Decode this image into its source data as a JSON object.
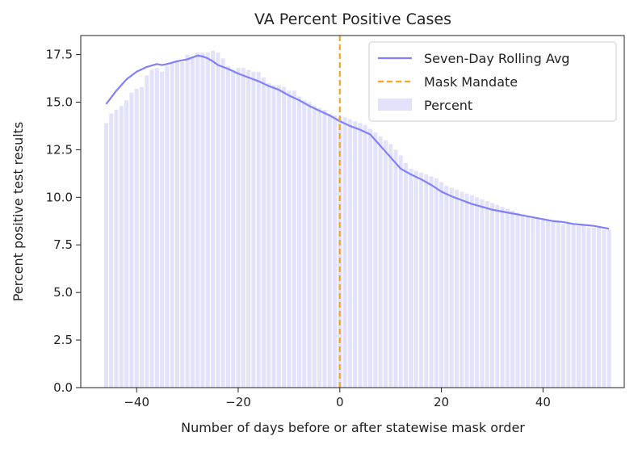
{
  "chart_data": {
    "type": "bar",
    "title": "VA Percent Positive Cases",
    "xlabel": "Number of days before or after statewise mask order",
    "ylabel": "Percent positive test results",
    "xlim": [
      -51,
      56
    ],
    "ylim": [
      0,
      18.5
    ],
    "xticks": [
      -40,
      -20,
      0,
      20,
      40
    ],
    "xtick_labels": [
      "−40",
      "−20",
      "0",
      "20",
      "40"
    ],
    "yticks": [
      0,
      2.5,
      5,
      7.5,
      10,
      12.5,
      15,
      17.5
    ],
    "ytick_labels": [
      "0.0",
      "2.5",
      "5.0",
      "7.5",
      "10.0",
      "12.5",
      "15.0",
      "17.5"
    ],
    "grid": false,
    "legend_position": "upper-right",
    "legend": [
      {
        "label": "Seven-Day Rolling Avg",
        "kind": "line",
        "color": "#8080ff"
      },
      {
        "label": "Mask Mandate",
        "kind": "dashed-line",
        "color": "#f5a623"
      },
      {
        "label": "Percent",
        "kind": "bar",
        "color": "#e2e2fb"
      }
    ],
    "vline": {
      "x": 0,
      "name": "Mask Mandate",
      "color": "#f5a623"
    },
    "series": [
      {
        "name": "Percent",
        "kind": "bar",
        "color": "#e2e2fb",
        "x": [
          -46,
          -45,
          -44,
          -43,
          -42,
          -41,
          -40,
          -39,
          -38,
          -37,
          -36,
          -35,
          -34,
          -33,
          -32,
          -31,
          -30,
          -29,
          -28,
          -27,
          -26,
          -25,
          -24,
          -23,
          -22,
          -21,
          -20,
          -19,
          -18,
          -17,
          -16,
          -15,
          -14,
          -13,
          -12,
          -11,
          -10,
          -9,
          -8,
          -7,
          -6,
          -5,
          -4,
          -3,
          -2,
          -1,
          0,
          1,
          2,
          3,
          4,
          5,
          6,
          7,
          8,
          9,
          10,
          11,
          12,
          13,
          14,
          15,
          16,
          17,
          18,
          19,
          20,
          21,
          22,
          23,
          24,
          25,
          26,
          27,
          28,
          29,
          30,
          31,
          32,
          33,
          34,
          35,
          36,
          37,
          38,
          39,
          40,
          41,
          42,
          43,
          44,
          45,
          46,
          47,
          48,
          49,
          50,
          51,
          52,
          53
        ],
        "values": [
          13.9,
          14.4,
          14.6,
          14.8,
          15.1,
          15.5,
          15.7,
          15.8,
          16.4,
          16.7,
          16.8,
          16.6,
          16.9,
          17.1,
          17.2,
          17.1,
          17.5,
          17.4,
          17.6,
          17.6,
          17.6,
          17.7,
          17.6,
          17.3,
          16.9,
          16.7,
          16.8,
          16.8,
          16.7,
          16.6,
          16.6,
          16.3,
          16.0,
          15.9,
          15.9,
          15.8,
          15.6,
          15.6,
          15.3,
          15.1,
          15.0,
          14.8,
          14.7,
          14.6,
          14.4,
          14.3,
          14.2,
          14.2,
          14.1,
          14.0,
          13.9,
          13.8,
          13.6,
          13.4,
          13.2,
          13.0,
          12.8,
          12.5,
          12.2,
          11.8,
          11.5,
          11.4,
          11.3,
          11.2,
          11.1,
          11.0,
          10.8,
          10.6,
          10.5,
          10.4,
          10.3,
          10.2,
          10.1,
          10.0,
          9.9,
          9.8,
          9.7,
          9.6,
          9.5,
          9.4,
          9.3,
          9.2,
          9.1,
          9.0,
          8.9,
          8.9,
          8.8,
          8.8,
          8.7,
          8.7,
          8.6,
          8.6,
          8.6,
          8.5,
          8.5,
          8.4,
          8.4,
          8.4,
          8.3,
          8.3
        ]
      },
      {
        "name": "Seven-Day Rolling Avg",
        "kind": "line",
        "color": "#8080ff",
        "x": [
          -46,
          -44,
          -42,
          -40,
          -38,
          -36,
          -35,
          -34,
          -32,
          -30,
          -28,
          -27,
          -26,
          -25,
          -24,
          -22,
          -20,
          -18,
          -16,
          -14,
          -12,
          -10,
          -8,
          -6,
          -4,
          -2,
          0,
          2,
          4,
          6,
          7,
          8,
          10,
          12,
          14,
          16,
          18,
          20,
          22,
          24,
          26,
          28,
          30,
          32,
          34,
          36,
          38,
          40,
          42,
          44,
          46,
          48,
          50,
          52,
          53
        ],
        "values": [
          14.9,
          15.6,
          16.2,
          16.6,
          16.85,
          17.0,
          16.95,
          17.0,
          17.15,
          17.25,
          17.45,
          17.4,
          17.3,
          17.15,
          16.95,
          16.75,
          16.5,
          16.3,
          16.1,
          15.85,
          15.65,
          15.35,
          15.1,
          14.8,
          14.55,
          14.3,
          14.0,
          13.75,
          13.55,
          13.3,
          13.0,
          12.7,
          12.1,
          11.5,
          11.2,
          10.95,
          10.65,
          10.3,
          10.05,
          9.85,
          9.65,
          9.5,
          9.35,
          9.25,
          9.15,
          9.05,
          8.95,
          8.85,
          8.75,
          8.7,
          8.6,
          8.55,
          8.5,
          8.4,
          8.35
        ]
      }
    ]
  }
}
